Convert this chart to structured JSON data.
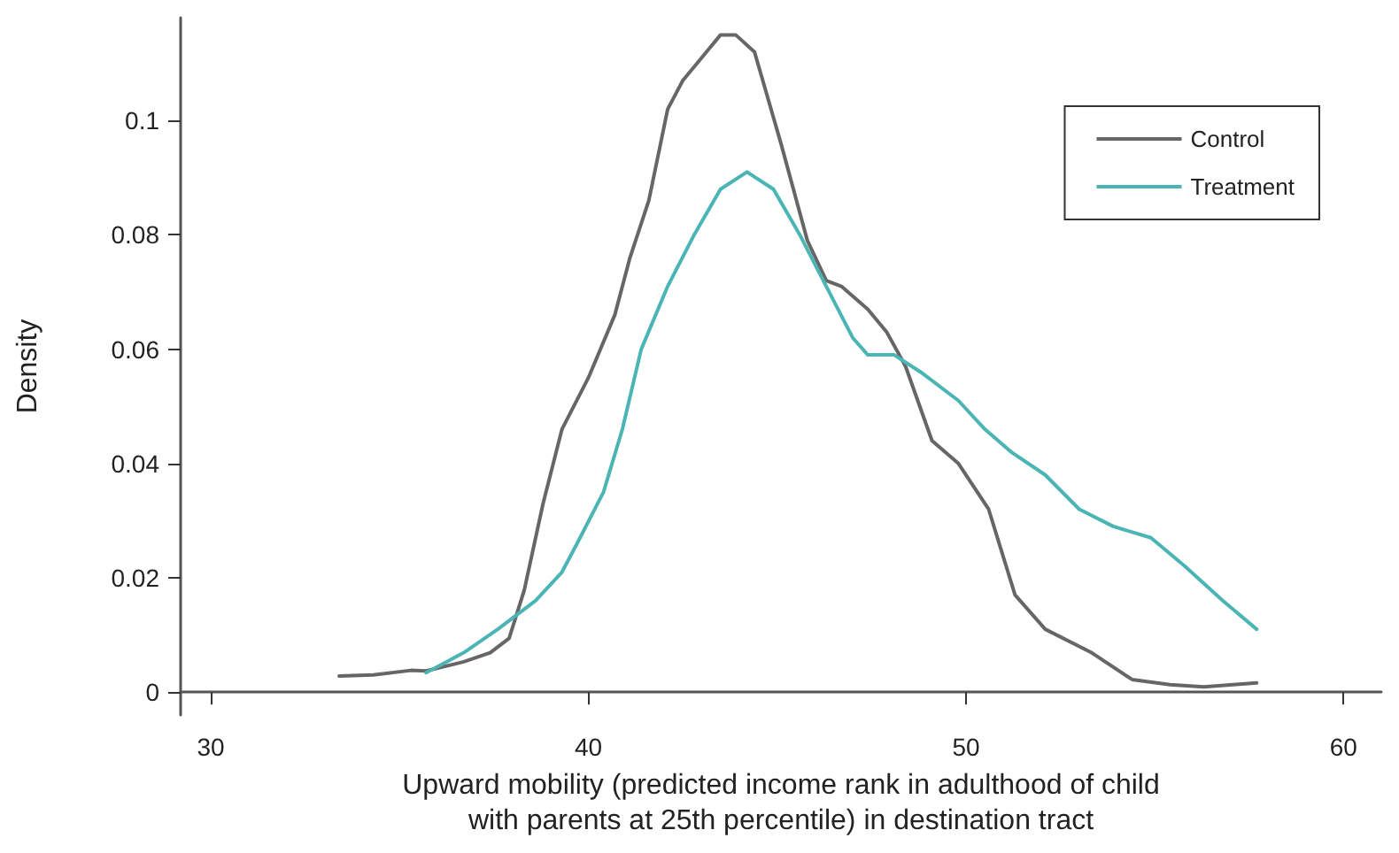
{
  "chart_data": {
    "type": "line",
    "xlabel": "Upward mobility (predicted income rank in adulthood of child\nwith parents at 25th percentile) in destination tract",
    "ylabel": "Density",
    "xlim": [
      29.2,
      61
    ],
    "xticks": [
      30,
      40,
      50,
      60
    ],
    "ylim": [
      -0.004,
      0.118
    ],
    "yticks": [
      0,
      0.02,
      0.04,
      0.06,
      0.08,
      0.1
    ],
    "grid": false,
    "legend": "top right",
    "marker": "none",
    "line_style": "solid",
    "series": [
      {
        "name": "Control",
        "color": "#666666",
        "x": [
          33.4,
          34.3,
          35.3,
          35.7,
          36.7,
          37.4,
          37.9,
          38.3,
          38.8,
          39.3,
          40.0,
          40.7,
          41.1,
          41.6,
          42.1,
          42.5,
          43.0,
          43.5,
          43.9,
          44.4,
          45.1,
          45.8,
          46.3,
          46.7,
          47.4,
          47.9,
          48.4,
          49.1,
          49.8,
          50.6,
          51.3,
          52.1,
          53.3,
          54.4,
          55.4,
          56.3,
          57.7
        ],
        "values": [
          0.0028,
          0.003,
          0.0038,
          0.0037,
          0.0053,
          0.0069,
          0.0094,
          0.0178,
          0.033,
          0.046,
          0.055,
          0.066,
          0.076,
          0.086,
          0.102,
          0.107,
          0.111,
          0.115,
          0.115,
          0.112,
          0.096,
          0.079,
          0.072,
          0.071,
          0.067,
          0.063,
          0.057,
          0.044,
          0.04,
          0.032,
          0.017,
          0.011,
          0.007,
          0.0022,
          0.0013,
          0.0009,
          0.0016
        ]
      },
      {
        "name": "Treatment",
        "color": "#4bb5b5",
        "x": [
          35.7,
          36.7,
          37.6,
          38.6,
          39.3,
          39.7,
          40.4,
          40.9,
          41.4,
          42.1,
          42.8,
          43.5,
          44.2,
          44.9,
          45.6,
          46.3,
          47.0,
          47.4,
          48.1,
          48.8,
          49.8,
          50.5,
          51.2,
          52.1,
          53.0,
          53.9,
          54.9,
          55.8,
          56.8,
          57.7
        ],
        "values": [
          0.0034,
          0.0069,
          0.011,
          0.016,
          0.021,
          0.026,
          0.035,
          0.046,
          0.06,
          0.071,
          0.08,
          0.088,
          0.091,
          0.088,
          0.08,
          0.071,
          0.062,
          0.059,
          0.059,
          0.056,
          0.051,
          0.046,
          0.042,
          0.038,
          0.032,
          0.029,
          0.027,
          0.022,
          0.016,
          0.011
        ]
      }
    ]
  }
}
